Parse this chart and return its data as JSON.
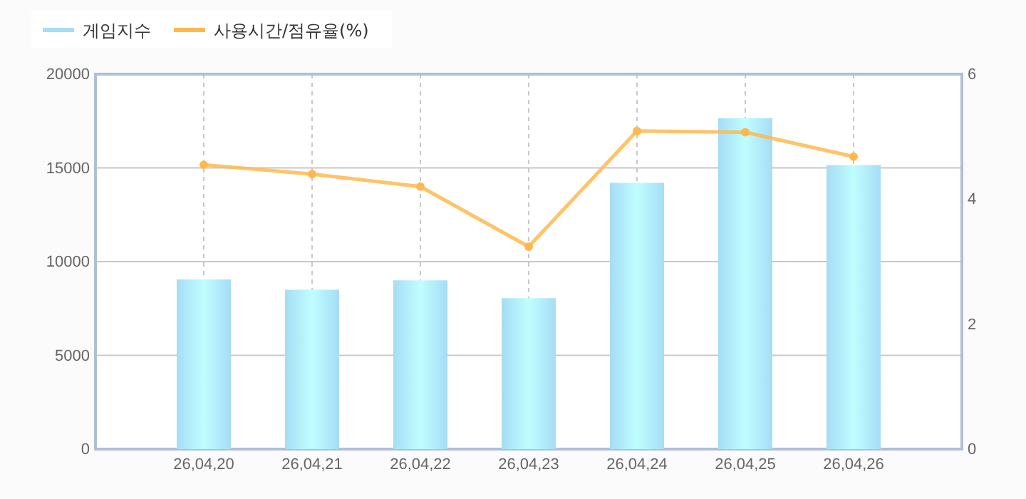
{
  "chart_data": {
    "type": "bar",
    "categories": [
      "26,04,20",
      "26,04,21",
      "26,04,22",
      "26,04,23",
      "26,04,24",
      "26,04,25",
      "26,04,26"
    ],
    "series": [
      {
        "name": "게임지수",
        "color": "#a6dcf5",
        "values": [
          9050,
          8500,
          9000,
          8050,
          14200,
          17650,
          15150
        ]
      },
      {
        "name": "사용시간/점유율(%)",
        "type": "line",
        "axis": "y2",
        "color": "#ffb84d",
        "marker": "circle",
        "values": [
          4.55,
          4.4,
          4.2,
          3.24,
          5.09,
          5.07,
          4.68
        ]
      }
    ],
    "ylim": [
      0,
      20000
    ],
    "yticks": [
      0,
      5000,
      10000,
      15000,
      20000
    ],
    "y2lim": [
      0,
      6
    ],
    "y2ticks": [
      0,
      2,
      4,
      6
    ],
    "grid": true,
    "legend": "top left"
  }
}
